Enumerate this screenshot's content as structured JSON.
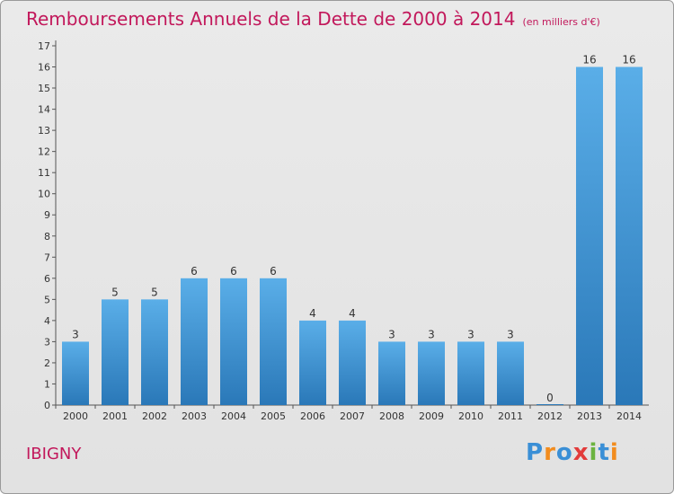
{
  "title": "Remboursements Annuels de la Dette de 2000 à 2014",
  "subtitle": "(en milliers d'€)",
  "commune": "IBIGNY",
  "logo": {
    "text": "Proxiti",
    "letters": [
      "P",
      "r",
      "o",
      "x",
      "i",
      "t",
      "i"
    ],
    "colors": [
      "#3a8fd6",
      "#f28c1e",
      "#3a8fd6",
      "#e23b3b",
      "#6cb33f",
      "#3a8fd6",
      "#f28c1e"
    ]
  },
  "colors": {
    "title": "#c2185b",
    "bar_top": "#5aaee8",
    "bar_bottom": "#2a78b8"
  },
  "chart_data": {
    "type": "bar",
    "categories": [
      "2000",
      "2001",
      "2002",
      "2003",
      "2004",
      "2005",
      "2006",
      "2007",
      "2008",
      "2009",
      "2010",
      "2011",
      "2012",
      "2013",
      "2014"
    ],
    "values": [
      3,
      5,
      5,
      6,
      6,
      6,
      4,
      4,
      3,
      3,
      3,
      3,
      0,
      16,
      16
    ],
    "data_labels": [
      "3",
      "5",
      "5",
      "6",
      "6",
      "6",
      "4",
      "4",
      "3",
      "3",
      "3",
      "3",
      "0",
      "16",
      "16"
    ],
    "yticks": [
      0,
      1,
      2,
      3,
      4,
      5,
      6,
      7,
      8,
      9,
      10,
      11,
      12,
      13,
      14,
      15,
      16,
      17
    ],
    "ylim": [
      0,
      17
    ],
    "grid": false,
    "legend": "none"
  }
}
